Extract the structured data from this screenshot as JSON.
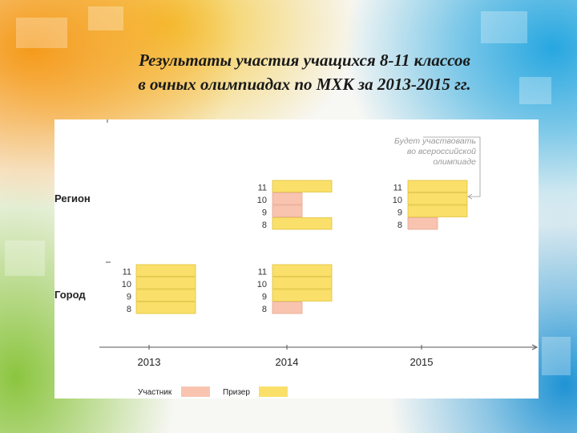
{
  "slide": {
    "title_line1": "Результаты участия учащихся 8-11 классов",
    "title_line2": "в очных олимпиадах по МХК за 2013-2015 гг."
  },
  "colors": {
    "participant": "#f8c4b0",
    "winner": "#fae06a",
    "participant_stroke": "#e9a58c",
    "winner_stroke": "#e2c23a",
    "axis": "#555555",
    "annotation": "#9a9a9a"
  },
  "chart_data": {
    "type": "table",
    "years": [
      "2013",
      "2014",
      "2015"
    ],
    "levels": [
      "Регион",
      "Город"
    ],
    "grades": [
      "11",
      "10",
      "9",
      "8"
    ],
    "statuses": [
      "Участник",
      "Призер"
    ],
    "cells": [
      {
        "level": "Регион",
        "year": "2013",
        "results": {
          "11": null,
          "10": null,
          "9": null,
          "8": null
        }
      },
      {
        "level": "Регион",
        "year": "2014",
        "results": {
          "11": "Призер",
          "10": "Участник",
          "9": "Участник",
          "8": "Призер"
        }
      },
      {
        "level": "Регион",
        "year": "2015",
        "results": {
          "11": "Призер",
          "10": "Призер",
          "9": "Призер",
          "8": "Участник"
        }
      },
      {
        "level": "Город",
        "year": "2013",
        "results": {
          "11": "Призер",
          "10": "Призер",
          "9": "Призер",
          "8": "Призер"
        }
      },
      {
        "level": "Город",
        "year": "2014",
        "results": {
          "11": "Призер",
          "10": "Призер",
          "9": "Призер",
          "8": "Участник"
        }
      },
      {
        "level": "Город",
        "year": "2015",
        "results": {
          "11": null,
          "10": null,
          "9": null,
          "8": null
        }
      }
    ],
    "annotation": {
      "lines": [
        "Будет участвовать",
        "во всероссийской",
        "олимпиаде"
      ],
      "target": {
        "level": "Регион",
        "year": "2015"
      }
    },
    "legend": {
      "placement": "bottom-left",
      "items": [
        {
          "label": "Участник",
          "status": "Участник"
        },
        {
          "label": "Призер",
          "status": "Призер"
        }
      ]
    }
  }
}
